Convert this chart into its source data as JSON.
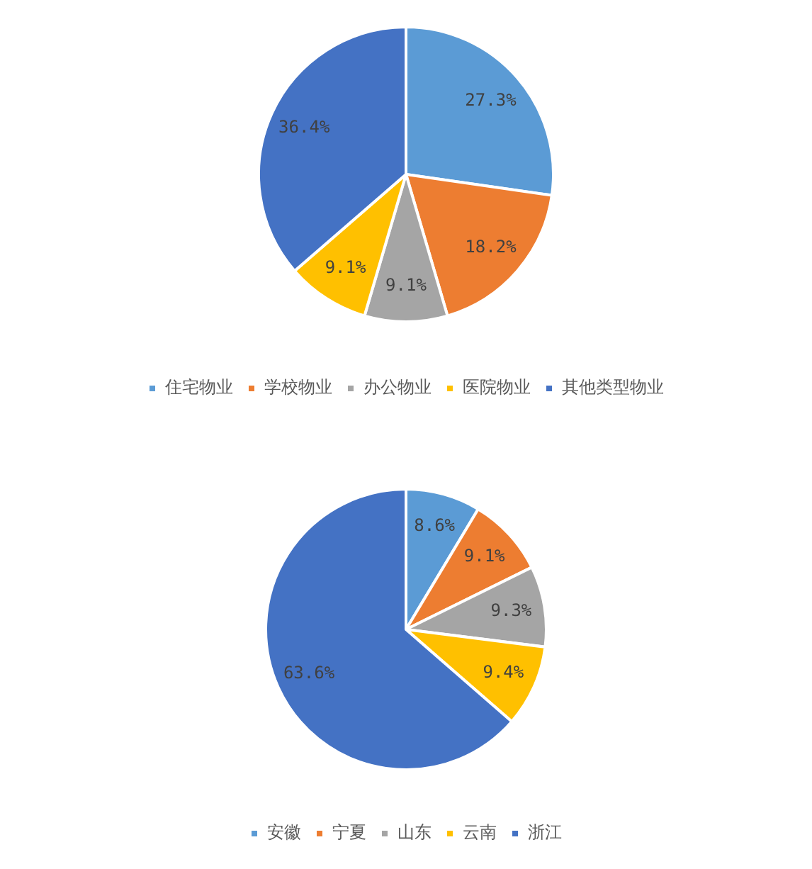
{
  "chart_data": [
    {
      "type": "pie",
      "categories": [
        "住宅物业",
        "学校物业",
        "办公物业",
        "医院物业",
        "其他类型物业"
      ],
      "values": [
        27.3,
        18.2,
        9.1,
        9.1,
        36.4
      ],
      "value_labels": [
        "27.3%",
        "18.2%",
        "9.1%",
        "9.1%",
        "36.4%"
      ],
      "colors": [
        "#5b9bd5",
        "#ed7d31",
        "#a5a5a5",
        "#ffc000",
        "#4472c4"
      ],
      "legend": "bottom"
    },
    {
      "type": "pie",
      "categories": [
        "安徽",
        "宁夏",
        "山东",
        "云南",
        "浙江"
      ],
      "values": [
        8.6,
        9.1,
        9.3,
        9.4,
        63.6
      ],
      "value_labels": [
        "8.6%",
        "9.1%",
        "9.3%",
        "9.4%",
        "63.6%"
      ],
      "colors": [
        "#5b9bd5",
        "#ed7d31",
        "#a5a5a5",
        "#ffc000",
        "#4472c4"
      ],
      "legend": "bottom"
    }
  ]
}
